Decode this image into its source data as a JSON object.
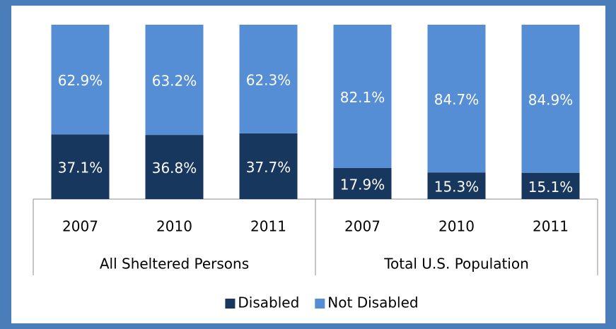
{
  "chart_data": {
    "type": "stacked_bar",
    "groups": [
      {
        "name": "All Sheltered Persons",
        "categories": [
          "2007",
          "2010",
          "2011"
        ]
      },
      {
        "name": "Total U.S. Population",
        "categories": [
          "2007",
          "2010",
          "2011"
        ]
      }
    ],
    "series": [
      {
        "name": "Disabled",
        "color": "#17375e",
        "values": [
          37.1,
          36.8,
          37.7,
          17.9,
          15.3,
          15.1
        ],
        "value_labels": [
          "37.1%",
          "36.8%",
          "37.7%",
          "17.9%",
          "15.3%",
          "15.1%"
        ]
      },
      {
        "name": "Not Disabled",
        "color": "#558ed5",
        "values": [
          62.9,
          63.2,
          62.3,
          82.1,
          84.7,
          84.9
        ],
        "value_labels": [
          "62.9%",
          "63.2%",
          "62.3%",
          "82.1%",
          "84.7%",
          "84.9%"
        ]
      }
    ],
    "ylim": [
      0,
      100
    ],
    "legend": "bottom"
  }
}
